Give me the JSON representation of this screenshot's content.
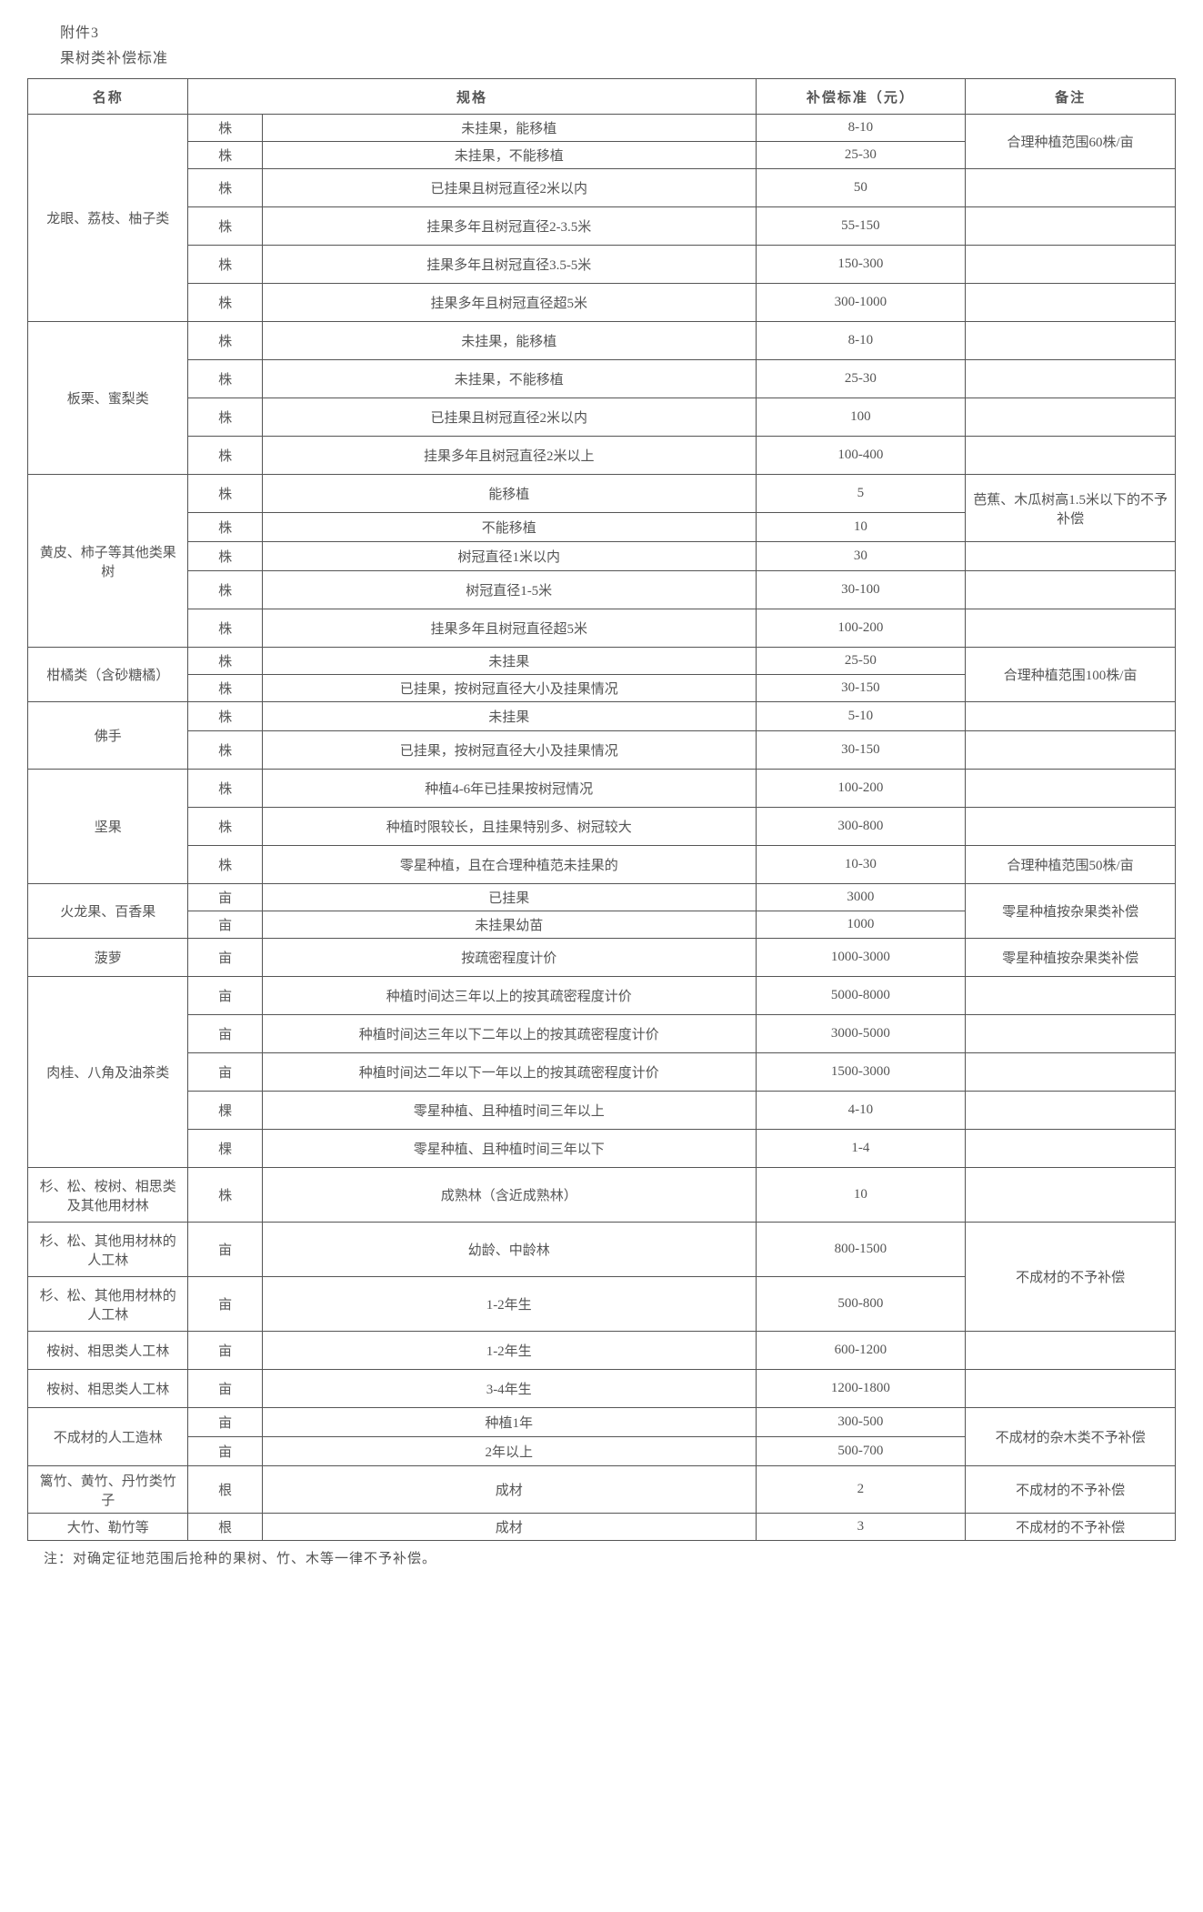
{
  "header": {
    "annex": "附件3",
    "title": "果树类补偿标准"
  },
  "columns": {
    "name": "名称",
    "spec": "规格",
    "standard": "补偿标准（元）",
    "remark": "备注"
  },
  "groups": [
    {
      "name": "龙眼、荔枝、柚子类",
      "name_rows": 6,
      "rows": [
        {
          "h": "short",
          "unit": "株",
          "spec": "未挂果，能移植",
          "standard": "8-10",
          "remark": "合理种植范围60株/亩",
          "remark_rows": 2
        },
        {
          "h": "short",
          "unit": "株",
          "spec": "未挂果，不能移植",
          "standard": "25-30"
        },
        {
          "h": "tall",
          "unit": "株",
          "spec": "已挂果且树冠直径2米以内",
          "standard": "50",
          "remark": ""
        },
        {
          "h": "tall",
          "unit": "株",
          "spec": "挂果多年且树冠直径2-3.5米",
          "standard": "55-150",
          "remark": ""
        },
        {
          "h": "tall",
          "unit": "株",
          "spec": "挂果多年且树冠直径3.5-5米",
          "standard": "150-300",
          "remark": ""
        },
        {
          "h": "tall",
          "unit": "株",
          "spec": "挂果多年且树冠直径超5米",
          "standard": "300-1000",
          "remark": ""
        }
      ]
    },
    {
      "name": "板栗、蜜梨类",
      "name_rows": 4,
      "rows": [
        {
          "h": "tall",
          "unit": "株",
          "spec": "未挂果，能移植",
          "standard": "8-10",
          "remark": ""
        },
        {
          "h": "tall",
          "unit": "株",
          "spec": "未挂果，不能移植",
          "standard": "25-30",
          "remark": ""
        },
        {
          "h": "tall",
          "unit": "株",
          "spec": "已挂果且树冠直径2米以内",
          "standard": "100",
          "remark": ""
        },
        {
          "h": "tall",
          "unit": "株",
          "spec": "挂果多年且树冠直径2米以上",
          "standard": "100-400",
          "remark": ""
        }
      ]
    },
    {
      "name": "黄皮、柿子等其他类果树",
      "name_rows": 5,
      "rows": [
        {
          "h": "tall",
          "unit": "株",
          "spec": "能移植",
          "standard": "5",
          "remark": "芭蕉、木瓜树高1.5米以下的不予补偿",
          "remark_rows": 2
        },
        {
          "h": "med",
          "unit": "株",
          "spec": "不能移植",
          "standard": "10"
        },
        {
          "h": "med",
          "unit": "株",
          "spec": "树冠直径1米以内",
          "standard": "30",
          "remark": ""
        },
        {
          "h": "tall",
          "unit": "株",
          "spec": "树冠直径1-5米",
          "standard": "30-100",
          "remark": ""
        },
        {
          "h": "tall",
          "unit": "株",
          "spec": "挂果多年且树冠直径超5米",
          "standard": "100-200",
          "remark": ""
        }
      ]
    },
    {
      "name": "柑橘类（含砂糖橘）",
      "name_rows": 2,
      "rows": [
        {
          "h": "short",
          "unit": "株",
          "spec": "未挂果",
          "standard": "25-50",
          "remark": "合理种植范围100株/亩",
          "remark_rows": 2
        },
        {
          "h": "short",
          "unit": "株",
          "spec": "已挂果，按树冠直径大小及挂果情况",
          "standard": "30-150"
        }
      ]
    },
    {
      "name": "佛手",
      "name_rows": 2,
      "rows": [
        {
          "h": "med",
          "unit": "株",
          "spec": "未挂果",
          "standard": "5-10",
          "remark": ""
        },
        {
          "h": "tall",
          "unit": "株",
          "spec": "已挂果，按树冠直径大小及挂果情况",
          "standard": "30-150",
          "remark": ""
        }
      ]
    },
    {
      "name": "坚果",
      "name_rows": 3,
      "rows": [
        {
          "h": "tall",
          "unit": "株",
          "spec": "种植4-6年已挂果按树冠情况",
          "standard": "100-200",
          "remark": ""
        },
        {
          "h": "tall",
          "unit": "株",
          "spec": "种植时限较长，且挂果特别多、树冠较大",
          "standard": "300-800",
          "remark": ""
        },
        {
          "h": "tall",
          "unit": "株",
          "spec": "零星种植，且在合理种植范未挂果的",
          "standard": "10-30",
          "remark": "合理种植范围50株/亩"
        }
      ]
    },
    {
      "name": "火龙果、百香果",
      "name_rows": 2,
      "rows": [
        {
          "h": "short",
          "unit": "亩",
          "spec": "已挂果",
          "standard": "3000",
          "remark": "零星种植按杂果类补偿",
          "remark_rows": 2
        },
        {
          "h": "short",
          "unit": "亩",
          "spec": "未挂果幼苗",
          "standard": "1000"
        }
      ]
    },
    {
      "name": "菠萝",
      "name_rows": 1,
      "rows": [
        {
          "h": "tall",
          "unit": "亩",
          "spec": "按疏密程度计价",
          "standard": "1000-3000",
          "remark": "零星种植按杂果类补偿"
        }
      ]
    },
    {
      "name": "肉桂、八角及油茶类",
      "name_rows": 5,
      "rows": [
        {
          "h": "tall",
          "unit": "亩",
          "spec": "种植时间达三年以上的按其疏密程度计价",
          "standard": "5000-8000",
          "remark": ""
        },
        {
          "h": "tall",
          "unit": "亩",
          "spec": "种植时间达三年以下二年以上的按其疏密程度计价",
          "standard": "3000-5000",
          "remark": ""
        },
        {
          "h": "tall",
          "unit": "亩",
          "spec": "种植时间达二年以下一年以上的按其疏密程度计价",
          "standard": "1500-3000",
          "remark": ""
        },
        {
          "h": "tall",
          "unit": "棵",
          "spec": "零星种植、且种植时间三年以上",
          "standard": "4-10",
          "remark": ""
        },
        {
          "h": "tall",
          "unit": "棵",
          "spec": "零星种植、且种植时间三年以下",
          "standard": "1-4",
          "remark": ""
        }
      ]
    },
    {
      "name": "杉、松、桉树、相思类及其他用材林",
      "name_rows": 1,
      "rows": [
        {
          "h": "xxtall",
          "unit": "株",
          "spec": "成熟林（含近成熟林）",
          "standard": "10",
          "remark": ""
        }
      ]
    },
    {
      "name": "杉、松、其他用材林的人工林",
      "name_rows": 1,
      "rows": [
        {
          "h": "xxtall",
          "unit": "亩",
          "spec": "幼龄、中龄林",
          "standard": "800-1500",
          "remark": "不成材的不予补偿",
          "remark_rows": 2
        }
      ]
    },
    {
      "name": "杉、松、其他用材林的人工林",
      "name_rows": 1,
      "rows": [
        {
          "h": "xxtall",
          "unit": "亩",
          "spec": "1-2年生",
          "standard": "500-800"
        }
      ]
    },
    {
      "name": "桉树、相思类人工林",
      "name_rows": 1,
      "rows": [
        {
          "h": "tall",
          "unit": "亩",
          "spec": "1-2年生",
          "standard": "600-1200",
          "remark": ""
        }
      ]
    },
    {
      "name": "桉树、相思类人工林",
      "name_rows": 1,
      "rows": [
        {
          "h": "tall",
          "unit": "亩",
          "spec": "3-4年生",
          "standard": "1200-1800",
          "remark": ""
        }
      ]
    },
    {
      "name": "不成材的人工造林",
      "name_rows": 2,
      "rows": [
        {
          "h": "med",
          "unit": "亩",
          "spec": "种植1年",
          "standard": "300-500",
          "remark": "不成材的杂木类不予补偿",
          "remark_rows": 2
        },
        {
          "h": "med",
          "unit": "亩",
          "spec": "2年以上",
          "standard": "500-700"
        }
      ]
    },
    {
      "name": "篱竹、黄竹、丹竹类竹子",
      "name_rows": 1,
      "rows": [
        {
          "h": "xtall",
          "unit": "根",
          "spec": "成材",
          "standard": "2",
          "remark": "不成材的不予补偿"
        }
      ]
    },
    {
      "name": "大竹、勒竹等",
      "name_rows": 1,
      "rows": [
        {
          "h": "short",
          "unit": "根",
          "spec": "成材",
          "standard": "3",
          "remark": "不成材的不予补偿"
        }
      ]
    }
  ],
  "footer": "注：对确定征地范围后抢种的果树、竹、木等一律不予补偿。"
}
